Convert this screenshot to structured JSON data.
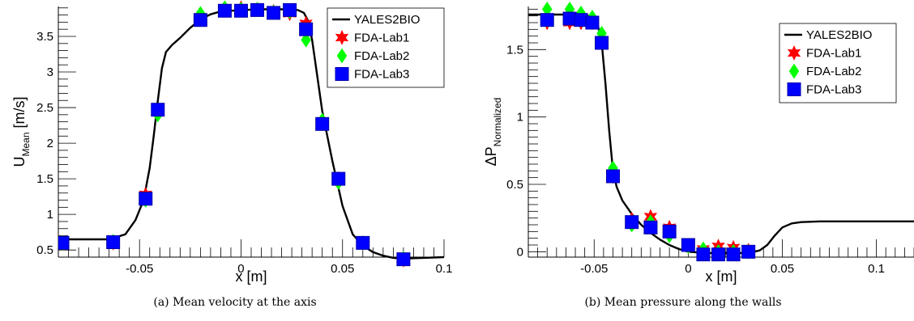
{
  "captions": [
    "(a) Mean velocity at the axis",
    "(b) Mean pressure along the walls"
  ],
  "chart_data": [
    {
      "type": "line",
      "xlabel": "x [m]",
      "ylabel": "U",
      "ylabel_sub": "Mean",
      "ylabel_unit": " [m/s]",
      "xlim": [
        -0.09,
        0.1
      ],
      "ylim": [
        0.4,
        3.92
      ],
      "xticks": [
        -0.05,
        0,
        0.05,
        0.1
      ],
      "xtick_labels": [
        "-0.05",
        "0",
        "0.05",
        "0.1"
      ],
      "yticks": [
        0.5,
        1,
        1.5,
        2,
        2.5,
        3,
        3.5
      ],
      "ytick_labels": [
        "0.5",
        "1",
        "1.5",
        "2",
        "2.5",
        "3",
        "3.5"
      ],
      "legend_position": "top-right",
      "grid": false,
      "series": [
        {
          "name": "YALES2BIO",
          "style": "line",
          "color": "#000000",
          "x": [
            -0.09,
            -0.065,
            -0.057,
            -0.052,
            -0.048,
            -0.045,
            -0.043,
            -0.041,
            -0.039,
            -0.037,
            -0.034,
            -0.03,
            -0.025,
            -0.02,
            -0.015,
            -0.01,
            0,
            0.01,
            0.02,
            0.028,
            0.031,
            0.033,
            0.035,
            0.037,
            0.04,
            0.045,
            0.05,
            0.055,
            0.06,
            0.065,
            0.07,
            0.075,
            0.08,
            0.09,
            0.1
          ],
          "y": [
            0.65,
            0.65,
            0.72,
            0.92,
            1.2,
            1.65,
            2.1,
            2.6,
            3.05,
            3.28,
            3.38,
            3.48,
            3.62,
            3.74,
            3.81,
            3.85,
            3.87,
            3.88,
            3.88,
            3.87,
            3.83,
            3.72,
            3.45,
            3.05,
            2.45,
            1.75,
            1.12,
            0.72,
            0.56,
            0.47,
            0.42,
            0.39,
            0.38,
            0.39,
            0.4
          ]
        },
        {
          "name": "FDA-Lab1",
          "style": "star",
          "color": "#ff0000",
          "x": [
            -0.088,
            -0.063,
            -0.047,
            -0.041,
            -0.02,
            -0.008,
            0,
            0.008,
            0.016,
            0.024,
            0.032,
            0.04,
            0.048,
            0.06,
            0.08
          ],
          "y": [
            0.6,
            0.6,
            1.28,
            2.45,
            3.75,
            3.88,
            3.9,
            3.88,
            3.85,
            3.82,
            3.68,
            2.3,
            1.5,
            0.6,
            0.36
          ]
        },
        {
          "name": "FDA-Lab2",
          "style": "diamond",
          "color": "#00ff00",
          "x": [
            -0.088,
            -0.063,
            -0.047,
            -0.041,
            -0.02,
            -0.008,
            0,
            0.008,
            0.016,
            0.024,
            0.032,
            0.04,
            0.048,
            0.06,
            0.08
          ],
          "y": [
            0.6,
            0.62,
            1.2,
            2.4,
            3.82,
            3.9,
            3.88,
            3.88,
            3.84,
            3.85,
            3.45,
            2.32,
            1.45,
            0.6,
            0.38
          ]
        },
        {
          "name": "FDA-Lab3",
          "style": "square",
          "color": "#0000ff",
          "x": [
            -0.088,
            -0.063,
            -0.047,
            -0.041,
            -0.02,
            -0.008,
            0,
            0.008,
            0.016,
            0.024,
            0.032,
            0.04,
            0.048,
            0.06,
            0.08
          ],
          "y": [
            0.6,
            0.61,
            1.22,
            2.47,
            3.73,
            3.86,
            3.86,
            3.87,
            3.83,
            3.87,
            3.6,
            2.27,
            1.5,
            0.6,
            0.37
          ]
        }
      ]
    },
    {
      "type": "line",
      "xlabel": "x [m]",
      "ylabel": "ΔP",
      "ylabel_sub": "Normalized",
      "ylabel_unit": "",
      "xlim": [
        -0.085,
        0.12
      ],
      "ylim": [
        -0.04,
        1.82
      ],
      "xticks": [
        -0.05,
        0,
        0.05,
        0.1
      ],
      "xtick_labels": [
        "-0.05",
        "0",
        "0.05",
        "0.1"
      ],
      "yticks": [
        0,
        0.5,
        1,
        1.5
      ],
      "ytick_labels": [
        "0",
        "0.5",
        "1",
        "1.5"
      ],
      "legend_position": "top-right",
      "grid": false,
      "series": [
        {
          "name": "YALES2BIO",
          "style": "line",
          "color": "#000000",
          "x": [
            -0.085,
            -0.06,
            -0.052,
            -0.048,
            -0.046,
            -0.044,
            -0.042,
            -0.04,
            -0.038,
            -0.035,
            -0.03,
            -0.025,
            -0.02,
            -0.015,
            -0.01,
            -0.005,
            0,
            0.01,
            0.02,
            0.03,
            0.035,
            0.038,
            0.042,
            0.046,
            0.05,
            0.055,
            0.06,
            0.07,
            0.08,
            0.1,
            0.12
          ],
          "y": [
            1.76,
            1.76,
            1.75,
            1.68,
            1.55,
            1.25,
            0.9,
            0.6,
            0.48,
            0.38,
            0.28,
            0.2,
            0.14,
            0.09,
            0.05,
            0.02,
            0.0,
            -0.01,
            -0.01,
            -0.01,
            0.0,
            0.01,
            0.05,
            0.12,
            0.18,
            0.21,
            0.22,
            0.225,
            0.225,
            0.225,
            0.225
          ]
        },
        {
          "name": "FDA-Lab1",
          "style": "star",
          "color": "#ff0000",
          "x": [
            -0.075,
            -0.063,
            -0.057,
            -0.051,
            -0.046,
            -0.04,
            -0.03,
            -0.02,
            -0.01,
            0,
            0.008,
            0.016,
            0.024,
            0.032
          ],
          "y": [
            1.7,
            1.7,
            1.7,
            1.7,
            1.56,
            0.56,
            0.24,
            0.26,
            0.18,
            0.04,
            0.02,
            0.04,
            0.03,
            0.01
          ]
        },
        {
          "name": "FDA-Lab2",
          "style": "diamond",
          "color": "#00ff00",
          "x": [
            -0.075,
            -0.063,
            -0.057,
            -0.051,
            -0.046,
            -0.04,
            -0.03,
            -0.02,
            -0.01,
            0,
            0.008,
            0.016,
            0.024,
            0.032
          ],
          "y": [
            1.8,
            1.8,
            1.77,
            1.74,
            1.62,
            0.62,
            0.2,
            0.22,
            0.12,
            0.04,
            0.02,
            0.0,
            0.0,
            0.0
          ]
        },
        {
          "name": "FDA-Lab3",
          "style": "square",
          "color": "#0000ff",
          "x": [
            -0.075,
            -0.063,
            -0.057,
            -0.051,
            -0.046,
            -0.04,
            -0.03,
            -0.02,
            -0.01,
            0,
            0.008,
            0.016,
            0.024,
            0.032
          ],
          "y": [
            1.72,
            1.73,
            1.72,
            1.7,
            1.55,
            0.56,
            0.22,
            0.18,
            0.15,
            0.05,
            -0.02,
            -0.02,
            -0.02,
            0.0
          ]
        }
      ]
    }
  ]
}
